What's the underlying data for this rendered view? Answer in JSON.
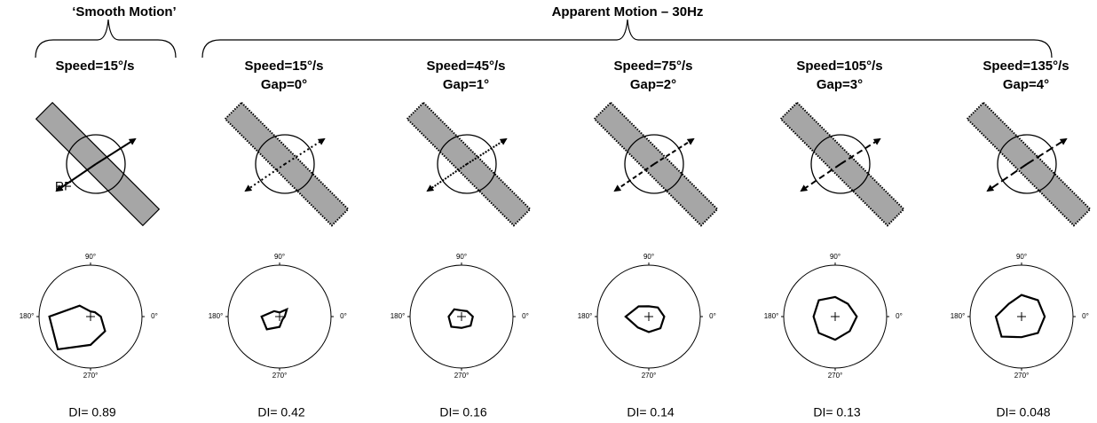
{
  "figure": {
    "group_labels": [
      "‘Smooth Motion’",
      "Apparent Motion – 30Hz"
    ],
    "rf_label": "RF"
  },
  "chart_data": [
    {
      "type": "polar",
      "title": "Speed=15°/s",
      "annotation": "DI= 0.89",
      "x": [
        0,
        45,
        90,
        135,
        180,
        225,
        270,
        315
      ],
      "values": [
        0.2,
        0.12,
        0.1,
        0.3,
        0.8,
        0.9,
        0.55,
        0.4
      ],
      "ylim": [
        0,
        1
      ],
      "xticks": [
        {
          "value": 0,
          "label": "0°"
        },
        {
          "value": 90,
          "label": "90°"
        },
        {
          "value": 180,
          "label": "180°"
        },
        {
          "value": 270,
          "label": "270°"
        }
      ]
    },
    {
      "type": "polar",
      "title": "Speed=15°/s",
      "subtitle": "Gap=0°",
      "annotation": "DI= 0.42",
      "x": [
        0,
        45,
        90,
        135,
        180,
        225,
        270,
        315
      ],
      "values": [
        0.1,
        0.2,
        0.08,
        0.15,
        0.35,
        0.35,
        0.2,
        0.08
      ],
      "ylim": [
        0,
        1
      ],
      "xticks": [
        {
          "value": 0,
          "label": "0°"
        },
        {
          "value": 90,
          "label": "90°"
        },
        {
          "value": 180,
          "label": "180°"
        },
        {
          "value": 270,
          "label": "270°"
        }
      ]
    },
    {
      "type": "polar",
      "title": "Speed=45°/s",
      "subtitle": "Gap=1°",
      "annotation": "DI= 0.16",
      "x": [
        0,
        45,
        90,
        135,
        180,
        225,
        270,
        315
      ],
      "values": [
        0.22,
        0.15,
        0.12,
        0.2,
        0.25,
        0.28,
        0.22,
        0.25
      ],
      "ylim": [
        0,
        1
      ],
      "xticks": [
        {
          "value": 0,
          "label": "0°"
        },
        {
          "value": 90,
          "label": "90°"
        },
        {
          "value": 180,
          "label": "180°"
        },
        {
          "value": 270,
          "label": "270°"
        }
      ]
    },
    {
      "type": "polar",
      "title": "Speed=75°/s",
      "subtitle": "Gap=2°",
      "annotation": "DI= 0.14",
      "x": [
        0,
        45,
        90,
        135,
        180,
        225,
        270,
        315
      ],
      "values": [
        0.3,
        0.25,
        0.2,
        0.28,
        0.45,
        0.3,
        0.3,
        0.32
      ],
      "ylim": [
        0,
        1
      ],
      "xticks": [
        {
          "value": 0,
          "label": "0°"
        },
        {
          "value": 90,
          "label": "90°"
        },
        {
          "value": 180,
          "label": "180°"
        },
        {
          "value": 270,
          "label": "270°"
        }
      ]
    },
    {
      "type": "polar",
      "title": "Speed=105°/s",
      "subtitle": "Gap=3°",
      "annotation": "DI= 0.13",
      "x": [
        0,
        45,
        90,
        135,
        180,
        225,
        270,
        315
      ],
      "values": [
        0.42,
        0.35,
        0.38,
        0.45,
        0.42,
        0.45,
        0.45,
        0.4
      ],
      "ylim": [
        0,
        1
      ],
      "xticks": [
        {
          "value": 0,
          "label": "0°"
        },
        {
          "value": 90,
          "label": "90°"
        },
        {
          "value": 180,
          "label": "180°"
        },
        {
          "value": 270,
          "label": "270°"
        }
      ]
    },
    {
      "type": "polar",
      "title": "Speed=135°/s",
      "subtitle": "Gap=4°",
      "annotation": "DI= 0.048",
      "x": [
        0,
        45,
        90,
        135,
        180,
        225,
        270,
        315
      ],
      "values": [
        0.45,
        0.45,
        0.42,
        0.35,
        0.5,
        0.55,
        0.4,
        0.45
      ],
      "ylim": [
        0,
        1
      ],
      "xticks": [
        {
          "value": 0,
          "label": "0°"
        },
        {
          "value": 90,
          "label": "90°"
        },
        {
          "value": 180,
          "label": "180°"
        },
        {
          "value": 270,
          "label": "270°"
        }
      ]
    }
  ]
}
